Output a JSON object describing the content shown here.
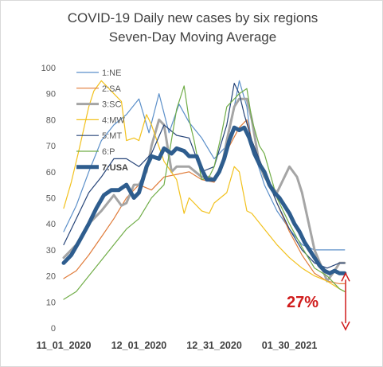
{
  "chart_data": {
    "type": "line",
    "title": "COVID-19 Daily new cases by six regions",
    "subtitle": "Seven-Day Moving Average",
    "ylim": [
      0,
      100
    ],
    "y_ticks": [
      "0",
      "10",
      "20",
      "30",
      "40",
      "50",
      "60",
      "70",
      "80",
      "90",
      "100"
    ],
    "x_ticks": [
      "11_01_2020",
      "12_01_2020",
      "12_31_2020",
      "01_30_2021"
    ],
    "x_tick_days": [
      0,
      30,
      60,
      90
    ],
    "xlim": [
      0,
      113
    ],
    "grid": false,
    "legend_position": "top-left",
    "annotation": {
      "text": "27%",
      "from_value": 21,
      "to_value": 0,
      "color": "#d01c1c"
    },
    "series": [
      {
        "name": "1:NE",
        "color": "#5b8fc9",
        "width": 1.2,
        "x": [
          0,
          5,
          10,
          15,
          20,
          25,
          30,
          34,
          38,
          42,
          46,
          50,
          55,
          60,
          65,
          70,
          73,
          75,
          80,
          85,
          90,
          95,
          100,
          105,
          110,
          112
        ],
        "y": [
          37,
          47,
          60,
          72,
          78,
          82,
          88,
          75,
          90,
          75,
          86,
          79,
          73,
          65,
          70,
          95,
          85,
          70,
          55,
          45,
          38,
          32,
          30,
          30,
          30,
          30
        ]
      },
      {
        "name": "2:SA",
        "color": "#e07b39",
        "width": 1.2,
        "x": [
          0,
          5,
          10,
          15,
          20,
          25,
          30,
          35,
          40,
          45,
          50,
          55,
          60,
          65,
          70,
          73,
          75,
          80,
          85,
          90,
          95,
          100,
          105,
          110,
          112
        ],
        "y": [
          19,
          22,
          28,
          35,
          42,
          50,
          55,
          53,
          58,
          59,
          60,
          57,
          56,
          68,
          77,
          80,
          72,
          60,
          48,
          37,
          28,
          21,
          18,
          17,
          17
        ]
      },
      {
        "name": "3:SC",
        "color": "#a5a5a5",
        "width": 3,
        "x": [
          0,
          5,
          10,
          15,
          20,
          23,
          25,
          28,
          30,
          33,
          35,
          38,
          40,
          43,
          45,
          47,
          50,
          55,
          58,
          60,
          63,
          65,
          68,
          70,
          73,
          75,
          78,
          80,
          83,
          85,
          87,
          90,
          93,
          95,
          100,
          103,
          105,
          108,
          110,
          112
        ],
        "y": [
          27,
          32,
          40,
          45,
          51,
          47,
          48,
          55,
          55,
          60,
          70,
          80,
          78,
          60,
          62,
          62,
          62,
          58,
          58,
          57,
          62,
          72,
          85,
          88,
          88,
          80,
          63,
          58,
          54,
          52,
          56,
          62,
          58,
          52,
          30,
          23,
          18,
          22,
          25,
          25
        ]
      },
      {
        "name": "4:MW",
        "color": "#f2c11c",
        "width": 1.2,
        "x": [
          0,
          3,
          6,
          10,
          12,
          15,
          20,
          23,
          25,
          28,
          30,
          33,
          35,
          40,
          45,
          48,
          50,
          52,
          55,
          58,
          60,
          65,
          68,
          70,
          73,
          75,
          80,
          85,
          90,
          95,
          100,
          105,
          110,
          112
        ],
        "y": [
          46,
          56,
          68,
          85,
          91,
          95,
          90,
          87,
          72,
          73,
          72,
          82,
          78,
          64,
          57,
          44,
          50,
          48,
          45,
          44,
          48,
          52,
          62,
          60,
          45,
          44,
          38,
          32,
          27,
          23,
          20,
          18,
          15,
          14
        ]
      },
      {
        "name": "5:MT",
        "color": "#264478",
        "width": 1.2,
        "x": [
          0,
          5,
          10,
          15,
          20,
          25,
          30,
          35,
          40,
          45,
          50,
          55,
          60,
          65,
          68,
          70,
          72,
          75,
          80,
          85,
          90,
          95,
          100,
          105,
          110,
          112
        ],
        "y": [
          32,
          42,
          52,
          58,
          65,
          65,
          62,
          67,
          78,
          74,
          73,
          60,
          62,
          78,
          94,
          90,
          82,
          72,
          60,
          48,
          38,
          30,
          25,
          23,
          25,
          25
        ]
      },
      {
        "name": "6:P",
        "color": "#70ad47",
        "width": 1.2,
        "x": [
          0,
          5,
          10,
          15,
          20,
          25,
          30,
          35,
          40,
          45,
          48,
          50,
          52,
          55,
          58,
          60,
          63,
          65,
          70,
          73,
          75,
          78,
          80,
          85,
          90,
          95,
          100,
          105,
          110,
          112
        ],
        "y": [
          11,
          14,
          20,
          26,
          32,
          38,
          42,
          50,
          55,
          84,
          93,
          80,
          72,
          57,
          58,
          62,
          75,
          85,
          90,
          92,
          80,
          70,
          67,
          50,
          40,
          31,
          23,
          20,
          15,
          14
        ]
      },
      {
        "name": "7:USA",
        "color": "#2e5d8e",
        "width": 5,
        "x": [
          0,
          3,
          6,
          10,
          13,
          16,
          19,
          22,
          25,
          28,
          30,
          33,
          35,
          38,
          40,
          43,
          45,
          48,
          50,
          53,
          55,
          57,
          60,
          62,
          64,
          66,
          68,
          70,
          72,
          74,
          76,
          78,
          80,
          82,
          84,
          86,
          88,
          90,
          92,
          94,
          96,
          98,
          100,
          102,
          104,
          106,
          108,
          110,
          112
        ],
        "y": [
          25,
          28,
          33,
          40,
          46,
          51,
          53,
          53,
          55,
          50,
          52,
          62,
          66,
          65,
          69,
          67,
          69,
          68,
          66,
          66,
          61,
          57,
          57,
          60,
          65,
          72,
          77,
          76,
          77,
          73,
          67,
          63,
          60,
          55,
          52,
          50,
          47,
          44,
          40,
          37,
          33,
          30,
          27,
          24,
          22,
          21,
          22,
          21,
          21
        ]
      }
    ]
  }
}
